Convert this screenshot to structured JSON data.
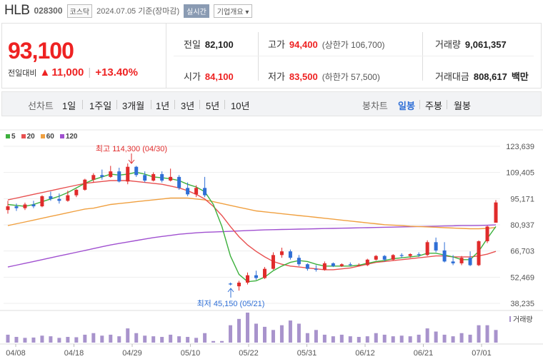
{
  "header": {
    "name": "HLB",
    "code": "028300",
    "market": "코스닥",
    "date": "2024.07.05 기준(장마감)",
    "realtime": "실시간",
    "company": "기업개요 ▾"
  },
  "quote": {
    "price": "93,100",
    "change_label": "전일대비",
    "arrow": "▲",
    "change": "11,000",
    "change_pct": "+13.40%",
    "prev_label": "전일",
    "prev": "82,100",
    "open_label": "시가",
    "open": "84,100",
    "high_label": "고가",
    "high": "94,400",
    "upper_limit": "(상한가 106,700)",
    "low_label": "저가",
    "low": "83,500",
    "lower_limit": "(하한가 57,500)",
    "volume_label": "거래량",
    "volume": "9,061,357",
    "amount_label": "거래대금",
    "amount": "808,617",
    "amount_unit": "백만"
  },
  "tabs": {
    "line_chart": "선차트",
    "periods": [
      "1일",
      "1주일",
      "3개월",
      "1년",
      "3년",
      "5년",
      "10년"
    ],
    "candle_chart": "봉차트",
    "candle_periods": [
      "일봉",
      "주봉",
      "월봉"
    ]
  },
  "colors": {
    "up": "#e02b2b",
    "down": "#2f6fd6",
    "ma5": "#3db03d",
    "ma20": "#e85050",
    "ma60": "#f0a040",
    "ma120": "#a050d0",
    "volume": "#a893cc"
  },
  "chart_data": {
    "type": "candlestick",
    "legend": [
      "5",
      "20",
      "60",
      "120"
    ],
    "yticks": [
      "123,639",
      "109,405",
      "95,171",
      "80,937",
      "66,703",
      "52,469",
      "38,235"
    ],
    "ylim": [
      38235,
      123639
    ],
    "xticks": [
      "04/08",
      "04/18",
      "04/29",
      "05/10",
      "05/22",
      "05/31",
      "06/12",
      "06/21",
      "07/01"
    ],
    "annotations": {
      "high": "최고 114,300 (04/30)",
      "low": "최저 45,150 (05/21)"
    },
    "volume_label": "거래량",
    "candles": [
      [
        89000,
        94000,
        87000,
        91000
      ],
      [
        91000,
        92500,
        88500,
        90000
      ],
      [
        90000,
        93000,
        89000,
        92000
      ],
      [
        92000,
        94000,
        90000,
        91000
      ],
      [
        91000,
        97000,
        90500,
        96500
      ],
      [
        96500,
        99000,
        94000,
        95000
      ],
      [
        95000,
        98000,
        92500,
        94000
      ],
      [
        94000,
        99500,
        93500,
        97000
      ],
      [
        97000,
        100500,
        96000,
        100000
      ],
      [
        100000,
        106000,
        99500,
        105500
      ],
      [
        105500,
        109000,
        104000,
        108000
      ],
      [
        108000,
        111000,
        105500,
        107000
      ],
      [
        107000,
        113000,
        106500,
        110000
      ],
      [
        110000,
        112000,
        104000,
        104500
      ],
      [
        104500,
        114300,
        103000,
        112500
      ],
      [
        112500,
        113000,
        107000,
        108000
      ],
      [
        108000,
        110000,
        104000,
        105000
      ],
      [
        105000,
        109500,
        104500,
        108500
      ],
      [
        108500,
        110000,
        104000,
        105000
      ],
      [
        105000,
        111500,
        104500,
        107000
      ],
      [
        107000,
        108000,
        100000,
        101000
      ],
      [
        101000,
        104000,
        96500,
        97500
      ],
      [
        97500,
        102500,
        96000,
        101000
      ],
      [
        101000,
        107000,
        96000,
        97000
      ],
      null,
      null,
      [
        49000,
        49500,
        48000,
        48500
      ],
      [
        47500,
        50500,
        45150,
        49500
      ],
      [
        49500,
        55000,
        48500,
        53500
      ],
      [
        53500,
        56000,
        51000,
        52000
      ],
      [
        52000,
        58000,
        51500,
        57000
      ],
      [
        57000,
        66000,
        56500,
        64500
      ],
      [
        64500,
        68500,
        63000,
        66500
      ],
      [
        66500,
        67500,
        62000,
        63000
      ],
      [
        63000,
        64500,
        58500,
        59500
      ],
      [
        59500,
        60000,
        56000,
        57000
      ],
      [
        57000,
        59000,
        55500,
        56500
      ],
      [
        56500,
        61000,
        56000,
        60000
      ],
      [
        60000,
        60500,
        58000,
        58500
      ],
      [
        58500,
        60000,
        58000,
        59500
      ],
      [
        59500,
        60500,
        58500,
        59000
      ],
      [
        59000,
        60000,
        58500,
        59000
      ],
      [
        59000,
        62500,
        58500,
        62000
      ],
      [
        62000,
        64500,
        61500,
        64000
      ],
      [
        64000,
        64500,
        61000,
        62000
      ],
      [
        62000,
        65000,
        61500,
        64500
      ],
      [
        64500,
        65500,
        63000,
        64000
      ],
      [
        64000,
        65500,
        63000,
        65000
      ],
      [
        65000,
        66000,
        63500,
        64500
      ],
      [
        64500,
        72500,
        64000,
        71500
      ],
      [
        71500,
        74000,
        66000,
        67000
      ],
      [
        67000,
        71500,
        60500,
        61000
      ],
      [
        61000,
        64500,
        59000,
        60000
      ],
      [
        60000,
        64000,
        59000,
        63000
      ],
      [
        63000,
        66500,
        58500,
        59000
      ],
      [
        59000,
        72500,
        58500,
        72000
      ],
      [
        72000,
        80500,
        71000,
        80000
      ],
      [
        82100,
        94400,
        83500,
        93100
      ]
    ],
    "ma5": [
      92000,
      91500,
      91000,
      92000,
      93500,
      95000,
      96500,
      98500,
      101000,
      103500,
      105500,
      107000,
      108500,
      108000,
      108500,
      109500,
      108500,
      107000,
      106500,
      106000,
      105000,
      103000,
      101500,
      99000,
      92000,
      80000,
      64000,
      54000,
      50000,
      50500,
      52500,
      56000,
      58500,
      60500,
      61500,
      61000,
      59500,
      58500,
      58500,
      58500,
      58500,
      59000,
      60000,
      61000,
      61500,
      62500,
      63000,
      63500,
      64000,
      65500,
      65500,
      64500,
      63500,
      62000,
      62000,
      66500,
      73500,
      80000
    ],
    "ma20": [
      94500,
      95500,
      96500,
      97500,
      98500,
      99500,
      100500,
      101500,
      102500,
      103500,
      104000,
      104500,
      105000,
      105000,
      105000,
      104500,
      104000,
      103500,
      103000,
      102000,
      101000,
      99500,
      97500,
      95000,
      91000,
      86000,
      80000,
      74500,
      70000,
      66500,
      63500,
      61000,
      59500,
      58500,
      58000,
      57500,
      57000,
      56500,
      56500,
      57000,
      57500,
      58500,
      59500,
      60500,
      61000,
      61500,
      62000,
      62500,
      63000,
      63500,
      64000,
      64000,
      63500,
      63500,
      63500,
      64000,
      65000,
      66500
    ],
    "ma60": [
      80500,
      81500,
      82500,
      83500,
      84500,
      85500,
      86500,
      87500,
      88500,
      89500,
      90000,
      91000,
      92000,
      92500,
      93000,
      93500,
      94000,
      94500,
      95000,
      95500,
      95500,
      95500,
      95000,
      94500,
      93500,
      92500,
      91500,
      90500,
      89500,
      88500,
      88000,
      87500,
      87000,
      86500,
      86000,
      85500,
      85000,
      84500,
      84000,
      83500,
      83000,
      82500,
      82000,
      81500,
      81000,
      80800,
      80500,
      80200,
      80000,
      79800,
      79600,
      79400,
      79200,
      79000,
      78800,
      78800,
      79000,
      79500
    ],
    "ma120": [
      58000,
      59000,
      60000,
      61000,
      62000,
      63000,
      64000,
      65000,
      66000,
      67000,
      68000,
      69000,
      70000,
      70800,
      71600,
      72400,
      73200,
      74000,
      74600,
      75200,
      75800,
      76200,
      76600,
      76900,
      77000,
      77200,
      77400,
      77600,
      77800,
      78000,
      78200,
      78300,
      78400,
      78500,
      78600,
      78700,
      78800,
      78900,
      79000,
      79100,
      79200,
      79300,
      79400,
      79500,
      79600,
      79700,
      79800,
      79900,
      80000,
      80100,
      80200,
      80300,
      80400,
      80500,
      80500,
      80600,
      80700,
      80900
    ],
    "volume": [
      0.25,
      0.18,
      0.15,
      0.16,
      0.22,
      0.2,
      0.15,
      0.18,
      0.17,
      0.25,
      0.3,
      0.22,
      0.25,
      0.2,
      0.45,
      0.3,
      0.22,
      0.2,
      0.18,
      0.25,
      0.2,
      0.18,
      0.15,
      0.3,
      0.05,
      0.05,
      0.55,
      0.75,
      0.95,
      0.6,
      0.5,
      0.4,
      0.55,
      0.7,
      0.6,
      0.3,
      0.4,
      0.25,
      0.2,
      0.25,
      0.2,
      0.18,
      0.2,
      0.3,
      0.25,
      0.2,
      0.22,
      0.2,
      0.25,
      0.45,
      0.35,
      0.25,
      0.2,
      0.3,
      0.25,
      0.55,
      0.55,
      0.4
    ]
  }
}
